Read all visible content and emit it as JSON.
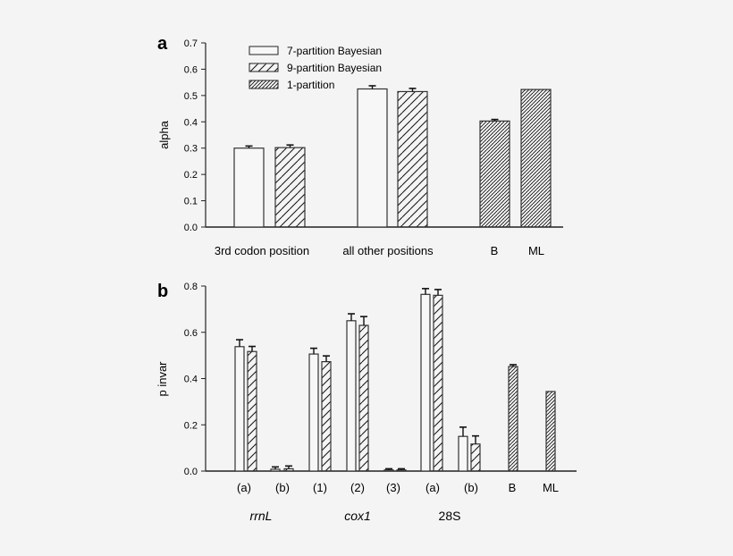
{
  "chart_data": [
    {
      "panel": "a",
      "type": "bar",
      "ylabel": "alpha",
      "ylim": [
        0.0,
        0.7
      ],
      "yticks": [
        "0.0",
        "0.1",
        "0.2",
        "0.3",
        "0.4",
        "0.5",
        "0.6",
        "0.7"
      ],
      "categories": [
        "3rd codon position",
        "all other positions",
        "B",
        "ML"
      ],
      "legend": [
        "7-partition Bayesian",
        "9-partition Bayesian",
        "1-partition"
      ],
      "series": [
        {
          "name": "7-partition Bayesian",
          "values": [
            0.3,
            0.525,
            null,
            null
          ],
          "errors": [
            0.008,
            0.012,
            null,
            null
          ]
        },
        {
          "name": "9-partition Bayesian",
          "values": [
            0.302,
            0.515,
            null,
            null
          ],
          "errors": [
            0.01,
            0.012,
            null,
            null
          ]
        },
        {
          "name": "1-partition",
          "values": [
            null,
            null,
            0.403,
            0.523
          ],
          "errors": [
            null,
            null,
            0.006,
            null
          ]
        }
      ],
      "grid": false
    },
    {
      "panel": "b",
      "type": "bar",
      "ylabel": "p invar",
      "ylim": [
        0.0,
        0.8
      ],
      "yticks": [
        "0.0",
        "0.2",
        "0.4",
        "0.6",
        "0.8"
      ],
      "categories": [
        "(a)",
        "(b)",
        "(1)",
        "(2)",
        "(3)",
        "(a)",
        "(b)",
        "B",
        "ML"
      ],
      "groups": [
        "rrnL",
        "cox1",
        "28S"
      ],
      "series": [
        {
          "name": "7-partition Bayesian",
          "values": [
            0.538,
            0.008,
            0.506,
            0.65,
            0.005,
            0.764,
            0.15,
            null,
            null
          ],
          "errors": [
            0.03,
            0.01,
            0.025,
            0.03,
            0.005,
            0.025,
            0.04,
            null,
            null
          ]
        },
        {
          "name": "9-partition Bayesian",
          "values": [
            0.517,
            0.01,
            0.473,
            0.63,
            0.005,
            0.76,
            0.117,
            null,
            null
          ],
          "errors": [
            0.022,
            0.012,
            0.025,
            0.038,
            0.005,
            0.025,
            0.035,
            null,
            null
          ]
        },
        {
          "name": "1-partition",
          "values": [
            null,
            null,
            null,
            null,
            null,
            null,
            null,
            0.452,
            0.344
          ],
          "errors": [
            null,
            null,
            null,
            null,
            null,
            null,
            null,
            0.008,
            null
          ]
        }
      ],
      "grid": false
    }
  ],
  "panels": {
    "a": {
      "letter": "a",
      "ylabel": "alpha",
      "yticks": [
        "0.0",
        "0.1",
        "0.2",
        "0.3",
        "0.4",
        "0.5",
        "0.6",
        "0.7"
      ],
      "xlabels": [
        "3rd codon position",
        "all other positions",
        "B",
        "ML"
      ],
      "legend": [
        "7-partition Bayesian",
        "9-partition Bayesian",
        "1-partition"
      ]
    },
    "b": {
      "letter": "b",
      "ylabel": "p invar",
      "yticks": [
        "0.0",
        "0.2",
        "0.4",
        "0.6",
        "0.8"
      ],
      "xlabels": [
        "(a)",
        "(b)",
        "(1)",
        "(2)",
        "(3)",
        "(a)",
        "(b)",
        "B",
        "ML"
      ],
      "groups": [
        "rrnL",
        "cox1",
        "28S"
      ]
    }
  }
}
